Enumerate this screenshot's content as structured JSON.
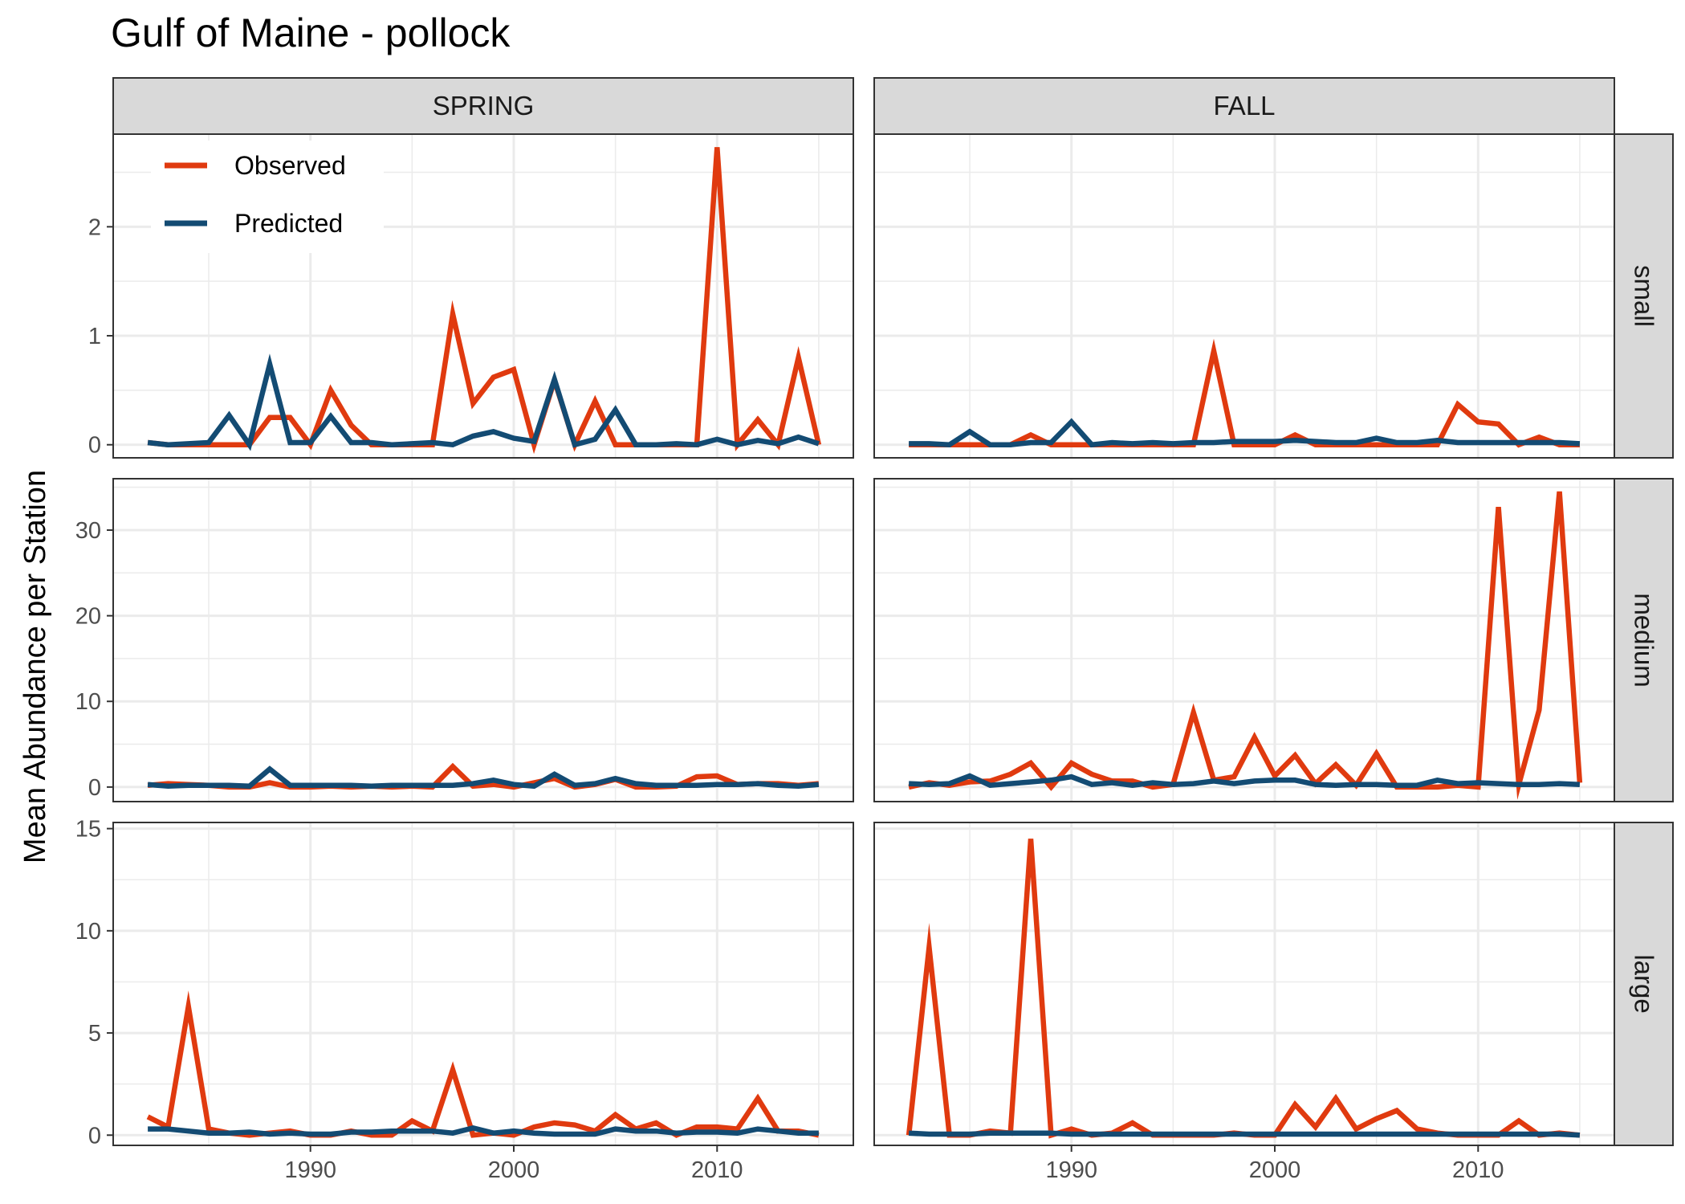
{
  "title": "Gulf of Maine - pollock",
  "ylabel": "Mean Abundance per Station",
  "colors": {
    "observed": "#e03a0f",
    "predicted": "#134b73",
    "strip_bg": "#d9d9d9",
    "grid": "#ebebeb"
  },
  "legend": {
    "observed": "Observed",
    "predicted": "Predicted"
  },
  "chart_data": {
    "type": "line",
    "facet_columns": [
      "SPRING",
      "FALL"
    ],
    "facet_rows": [
      "small",
      "medium",
      "large"
    ],
    "x": [
      1982,
      1983,
      1984,
      1985,
      1986,
      1987,
      1988,
      1989,
      1990,
      1991,
      1992,
      1993,
      1994,
      1995,
      1996,
      1997,
      1998,
      1999,
      2000,
      2001,
      2002,
      2003,
      2004,
      2005,
      2006,
      2007,
      2008,
      2009,
      2010,
      2011,
      2012,
      2013,
      2014,
      2015
    ],
    "x_ticks": [
      1990,
      2000,
      2010
    ],
    "xlim": [
      1980.3,
      2016.7
    ],
    "rows": [
      {
        "name": "small",
        "ylim": [
          -0.12,
          2.85
        ],
        "y_ticks": [
          0,
          1,
          2
        ],
        "panels": [
          {
            "column": "SPRING",
            "series": [
              {
                "name": "Observed",
                "values": [
                  0.02,
                  0.0,
                  0.0,
                  0.0,
                  0.0,
                  0.0,
                  0.25,
                  0.25,
                  0.0,
                  0.5,
                  0.18,
                  0.0,
                  0.0,
                  0.0,
                  0.0,
                  1.2,
                  0.38,
                  0.62,
                  0.69,
                  0.0,
                  0.59,
                  0.0,
                  0.4,
                  0.0,
                  0.0,
                  0.0,
                  0.0,
                  0.0,
                  2.73,
                  0.0,
                  0.23,
                  0.0,
                  0.8,
                  0.0
                ]
              },
              {
                "name": "Predicted",
                "values": [
                  0.02,
                  0.0,
                  0.01,
                  0.02,
                  0.27,
                  0.0,
                  0.74,
                  0.02,
                  0.02,
                  0.26,
                  0.02,
                  0.02,
                  0.0,
                  0.01,
                  0.02,
                  0.0,
                  0.08,
                  0.12,
                  0.06,
                  0.03,
                  0.6,
                  0.0,
                  0.05,
                  0.32,
                  0.0,
                  0.0,
                  0.01,
                  0.0,
                  0.05,
                  0.0,
                  0.04,
                  0.01,
                  0.07,
                  0.01
                ]
              }
            ]
          },
          {
            "column": "FALL",
            "series": [
              {
                "name": "Observed",
                "values": [
                  0.0,
                  0.0,
                  0.0,
                  0.0,
                  0.0,
                  0.0,
                  0.09,
                  0.0,
                  0.0,
                  0.0,
                  0.0,
                  0.0,
                  0.0,
                  0.0,
                  0.0,
                  0.86,
                  0.0,
                  0.0,
                  0.0,
                  0.09,
                  0.0,
                  0.0,
                  0.0,
                  0.0,
                  0.0,
                  0.0,
                  0.0,
                  0.37,
                  0.21,
                  0.19,
                  0.0,
                  0.07,
                  0.0,
                  0.0
                ]
              },
              {
                "name": "Predicted",
                "values": [
                  0.01,
                  0.01,
                  0.0,
                  0.12,
                  0.0,
                  0.0,
                  0.02,
                  0.02,
                  0.21,
                  0.0,
                  0.02,
                  0.01,
                  0.02,
                  0.01,
                  0.02,
                  0.02,
                  0.03,
                  0.03,
                  0.03,
                  0.04,
                  0.03,
                  0.02,
                  0.02,
                  0.06,
                  0.02,
                  0.02,
                  0.04,
                  0.02,
                  0.02,
                  0.02,
                  0.02,
                  0.02,
                  0.02,
                  0.01
                ]
              }
            ]
          }
        ]
      },
      {
        "name": "medium",
        "ylim": [
          -1.7,
          36.0
        ],
        "y_ticks": [
          0,
          10,
          20,
          30
        ],
        "panels": [
          {
            "column": "SPRING",
            "series": [
              {
                "name": "Observed",
                "values": [
                  0.2,
                  0.4,
                  0.3,
                  0.2,
                  0.0,
                  0.0,
                  0.5,
                  0.0,
                  0.0,
                  0.1,
                  0.0,
                  0.1,
                  0.0,
                  0.1,
                  0.0,
                  2.4,
                  0.1,
                  0.3,
                  0.0,
                  0.5,
                  1.0,
                  0.0,
                  0.3,
                  0.9,
                  0.0,
                  0.0,
                  0.1,
                  1.2,
                  1.3,
                  0.3,
                  0.4,
                  0.4,
                  0.2,
                  0.4
                ]
              },
              {
                "name": "Predicted",
                "values": [
                  0.3,
                  0.1,
                  0.2,
                  0.2,
                  0.2,
                  0.1,
                  2.1,
                  0.2,
                  0.2,
                  0.2,
                  0.2,
                  0.1,
                  0.2,
                  0.2,
                  0.2,
                  0.2,
                  0.4,
                  0.8,
                  0.3,
                  0.1,
                  1.5,
                  0.2,
                  0.4,
                  1.0,
                  0.4,
                  0.2,
                  0.2,
                  0.2,
                  0.3,
                  0.3,
                  0.4,
                  0.2,
                  0.1,
                  0.3
                ]
              }
            ]
          },
          {
            "column": "FALL",
            "series": [
              {
                "name": "Observed",
                "values": [
                  0.0,
                  0.5,
                  0.2,
                  0.6,
                  0.7,
                  1.5,
                  2.8,
                  0.0,
                  2.8,
                  1.5,
                  0.7,
                  0.7,
                  0.0,
                  0.3,
                  8.7,
                  0.8,
                  1.2,
                  5.8,
                  1.3,
                  3.7,
                  0.4,
                  2.6,
                  0.2,
                  3.9,
                  0.0,
                  0.0,
                  0.0,
                  0.2,
                  0.0,
                  32.7,
                  0.3,
                  9.0,
                  34.5,
                  0.5
                ]
              },
              {
                "name": "Predicted",
                "values": [
                  0.4,
                  0.3,
                  0.4,
                  1.3,
                  0.2,
                  0.4,
                  0.6,
                  0.8,
                  1.2,
                  0.3,
                  0.5,
                  0.2,
                  0.5,
                  0.3,
                  0.4,
                  0.7,
                  0.4,
                  0.7,
                  0.8,
                  0.8,
                  0.3,
                  0.2,
                  0.3,
                  0.3,
                  0.2,
                  0.2,
                  0.8,
                  0.4,
                  0.5,
                  0.4,
                  0.3,
                  0.3,
                  0.4,
                  0.3
                ]
              }
            ]
          }
        ]
      },
      {
        "name": "large",
        "ylim": [
          -0.5,
          15.3
        ],
        "y_ticks": [
          0,
          5,
          10,
          15
        ],
        "panels": [
          {
            "column": "SPRING",
            "series": [
              {
                "name": "Observed",
                "values": [
                  0.9,
                  0.4,
                  6.3,
                  0.3,
                  0.1,
                  0.0,
                  0.1,
                  0.2,
                  0.0,
                  0.0,
                  0.2,
                  0.0,
                  0.0,
                  0.7,
                  0.2,
                  3.2,
                  0.0,
                  0.1,
                  0.0,
                  0.4,
                  0.6,
                  0.5,
                  0.2,
                  1.0,
                  0.3,
                  0.6,
                  0.0,
                  0.4,
                  0.4,
                  0.3,
                  1.8,
                  0.2,
                  0.2,
                  0.0
                ]
              },
              {
                "name": "Predicted",
                "values": [
                  0.3,
                  0.3,
                  0.2,
                  0.1,
                  0.1,
                  0.15,
                  0.05,
                  0.1,
                  0.05,
                  0.05,
                  0.15,
                  0.15,
                  0.2,
                  0.2,
                  0.2,
                  0.1,
                  0.35,
                  0.1,
                  0.2,
                  0.1,
                  0.05,
                  0.05,
                  0.05,
                  0.3,
                  0.2,
                  0.2,
                  0.1,
                  0.15,
                  0.15,
                  0.1,
                  0.3,
                  0.2,
                  0.1,
                  0.1
                ]
              }
            ]
          },
          {
            "column": "FALL",
            "series": [
              {
                "name": "Observed",
                "values": [
                  0.0,
                  9.2,
                  0.0,
                  0.0,
                  0.2,
                  0.1,
                  14.5,
                  0.0,
                  0.3,
                  0.0,
                  0.1,
                  0.6,
                  0.0,
                  0.0,
                  0.0,
                  0.0,
                  0.1,
                  0.0,
                  0.0,
                  1.5,
                  0.4,
                  1.8,
                  0.3,
                  0.8,
                  1.2,
                  0.3,
                  0.1,
                  0.0,
                  0.0,
                  0.0,
                  0.7,
                  0.0,
                  0.1,
                  0.0
                ]
              },
              {
                "name": "Predicted",
                "values": [
                  0.1,
                  0.05,
                  0.05,
                  0.05,
                  0.1,
                  0.1,
                  0.1,
                  0.1,
                  0.05,
                  0.05,
                  0.05,
                  0.05,
                  0.05,
                  0.05,
                  0.05,
                  0.05,
                  0.05,
                  0.05,
                  0.05,
                  0.05,
                  0.05,
                  0.05,
                  0.05,
                  0.05,
                  0.05,
                  0.05,
                  0.05,
                  0.05,
                  0.05,
                  0.05,
                  0.05,
                  0.05,
                  0.05,
                  0.0
                ]
              }
            ]
          }
        ]
      }
    ],
    "legend_placement": "inside top-left of SPRING small panel",
    "grid": true
  }
}
